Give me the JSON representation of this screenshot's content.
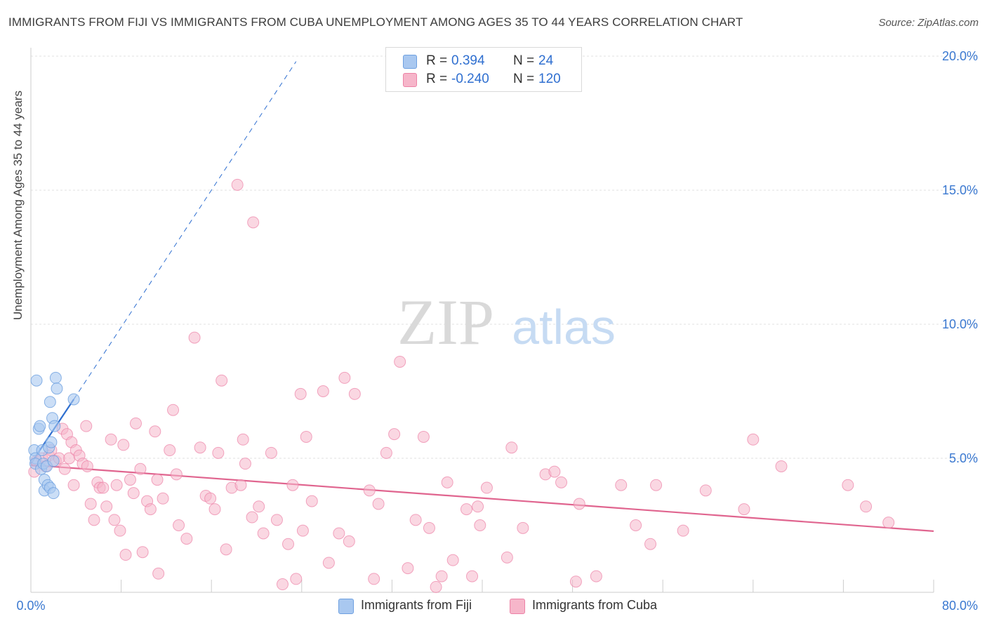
{
  "title": "IMMIGRANTS FROM FIJI VS IMMIGRANTS FROM CUBA UNEMPLOYMENT AMONG AGES 35 TO 44 YEARS CORRELATION CHART",
  "source": "Source: ZipAtlas.com",
  "watermark": {
    "zip": "ZIP",
    "atlas": "atlas"
  },
  "legend_top": [
    {
      "r_label": "R =",
      "r_value": "0.394",
      "n_label": "N =",
      "n_value": "24",
      "color": "#a9c8f0"
    },
    {
      "r_label": "R =",
      "r_value": "-0.240",
      "n_label": "N =",
      "n_value": "120",
      "color": "#f6b6ca"
    }
  ],
  "legend_bottom": [
    {
      "label": "Immigrants from Fiji",
      "color": "#a9c8f0"
    },
    {
      "label": "Immigrants from Cuba",
      "color": "#f6b6ca"
    }
  ],
  "chart_data": {
    "type": "scatter",
    "title": "IMMIGRANTS FROM FIJI VS IMMIGRANTS FROM CUBA UNEMPLOYMENT AMONG AGES 35 TO 44 YEARS CORRELATION CHART",
    "xlabel": "",
    "ylabel": "Unemployment Among Ages 35 to 44 years",
    "xlim": [
      0,
      80
    ],
    "ylim": [
      0,
      20
    ],
    "x_tick_labels": [
      "0.0%",
      "80.0%"
    ],
    "y_tick_labels": [
      "5.0%",
      "10.0%",
      "15.0%",
      "20.0%"
    ],
    "y_ticks": [
      5,
      10,
      15,
      20
    ],
    "grid": true,
    "legend_position": "top-center",
    "colors": {
      "fiji": "#6ea0e0",
      "fiji_fill": "#a9c8f0",
      "fiji_line": "#2f6fd0",
      "cuba": "#ec82a6",
      "cuba_fill": "#f6b6ca",
      "cuba_line": "#e0658f"
    },
    "series": [
      {
        "name": "Immigrants from Fiji",
        "points": [
          [
            0.3,
            5.3
          ],
          [
            0.4,
            5.0
          ],
          [
            0.4,
            4.8
          ],
          [
            0.5,
            7.9
          ],
          [
            0.7,
            6.1
          ],
          [
            0.8,
            6.2
          ],
          [
            0.9,
            4.6
          ],
          [
            1.0,
            5.3
          ],
          [
            1.1,
            4.8
          ],
          [
            1.2,
            3.8
          ],
          [
            1.2,
            4.2
          ],
          [
            1.4,
            4.7
          ],
          [
            1.5,
            4.0
          ],
          [
            1.6,
            5.4
          ],
          [
            1.7,
            3.9
          ],
          [
            1.7,
            7.1
          ],
          [
            1.8,
            5.6
          ],
          [
            1.9,
            6.5
          ],
          [
            2.0,
            3.7
          ],
          [
            2.0,
            4.9
          ],
          [
            2.1,
            6.2
          ],
          [
            2.2,
            8.0
          ],
          [
            2.3,
            7.6
          ],
          [
            3.8,
            7.2
          ]
        ],
        "trend": {
          "x": [
            0,
            3.8
          ],
          "y": [
            4.8,
            7.2
          ],
          "extended": {
            "x": [
              3.8,
              23.5
            ],
            "y": [
              7.2,
              19.8
            ]
          }
        }
      },
      {
        "name": "Immigrants from Cuba",
        "points": [
          [
            0.3,
            4.5
          ],
          [
            0.5,
            4.9
          ],
          [
            1.0,
            5.0
          ],
          [
            1.3,
            4.7
          ],
          [
            1.6,
            5.1
          ],
          [
            1.8,
            5.3
          ],
          [
            2.2,
            4.9
          ],
          [
            2.5,
            5.0
          ],
          [
            2.8,
            6.1
          ],
          [
            3.0,
            4.6
          ],
          [
            3.2,
            5.9
          ],
          [
            3.4,
            5.0
          ],
          [
            3.6,
            5.6
          ],
          [
            3.8,
            4.0
          ],
          [
            4.0,
            5.3
          ],
          [
            4.3,
            5.1
          ],
          [
            4.6,
            4.8
          ],
          [
            4.9,
            6.2
          ],
          [
            5.0,
            4.7
          ],
          [
            5.3,
            3.3
          ],
          [
            5.6,
            2.7
          ],
          [
            5.9,
            4.1
          ],
          [
            6.1,
            3.9
          ],
          [
            6.4,
            3.9
          ],
          [
            6.7,
            3.2
          ],
          [
            7.1,
            5.7
          ],
          [
            7.4,
            2.7
          ],
          [
            7.6,
            4.0
          ],
          [
            7.9,
            2.3
          ],
          [
            8.2,
            5.5
          ],
          [
            8.4,
            1.4
          ],
          [
            8.8,
            4.2
          ],
          [
            9.1,
            3.7
          ],
          [
            9.3,
            6.3
          ],
          [
            9.7,
            4.6
          ],
          [
            9.9,
            1.5
          ],
          [
            10.3,
            3.4
          ],
          [
            10.6,
            3.1
          ],
          [
            11.0,
            6.0
          ],
          [
            11.2,
            4.2
          ],
          [
            11.3,
            0.7
          ],
          [
            11.7,
            3.5
          ],
          [
            12.3,
            5.3
          ],
          [
            12.6,
            6.8
          ],
          [
            12.9,
            4.4
          ],
          [
            13.1,
            2.5
          ],
          [
            13.8,
            2.0
          ],
          [
            14.5,
            9.5
          ],
          [
            15.0,
            5.4
          ],
          [
            15.5,
            3.6
          ],
          [
            15.9,
            3.5
          ],
          [
            16.3,
            3.1
          ],
          [
            16.6,
            5.2
          ],
          [
            16.9,
            7.9
          ],
          [
            17.3,
            1.6
          ],
          [
            17.8,
            3.9
          ],
          [
            18.3,
            15.2
          ],
          [
            18.6,
            4.0
          ],
          [
            18.8,
            5.7
          ],
          [
            19.0,
            4.8
          ],
          [
            19.6,
            2.8
          ],
          [
            19.7,
            13.8
          ],
          [
            20.2,
            3.2
          ],
          [
            20.6,
            2.2
          ],
          [
            21.3,
            5.2
          ],
          [
            21.8,
            2.7
          ],
          [
            22.3,
            0.3
          ],
          [
            22.8,
            1.8
          ],
          [
            23.2,
            4.0
          ],
          [
            23.5,
            0.5
          ],
          [
            23.9,
            7.4
          ],
          [
            24.1,
            2.3
          ],
          [
            24.4,
            5.8
          ],
          [
            24.9,
            3.4
          ],
          [
            25.9,
            7.5
          ],
          [
            26.4,
            1.1
          ],
          [
            27.3,
            2.2
          ],
          [
            27.8,
            8.0
          ],
          [
            28.2,
            1.9
          ],
          [
            28.7,
            7.4
          ],
          [
            30.0,
            3.8
          ],
          [
            30.4,
            0.5
          ],
          [
            30.8,
            3.3
          ],
          [
            31.5,
            5.2
          ],
          [
            32.2,
            5.9
          ],
          [
            32.7,
            8.6
          ],
          [
            33.4,
            0.9
          ],
          [
            34.1,
            2.7
          ],
          [
            34.8,
            5.8
          ],
          [
            35.3,
            2.4
          ],
          [
            35.9,
            0.2
          ],
          [
            36.4,
            0.6
          ],
          [
            36.9,
            4.1
          ],
          [
            37.4,
            1.2
          ],
          [
            38.6,
            3.1
          ],
          [
            39.1,
            0.6
          ],
          [
            39.6,
            3.2
          ],
          [
            39.8,
            2.5
          ],
          [
            40.4,
            3.9
          ],
          [
            42.2,
            1.3
          ],
          [
            42.6,
            5.4
          ],
          [
            43.6,
            2.4
          ],
          [
            45.6,
            4.4
          ],
          [
            46.4,
            4.5
          ],
          [
            47.0,
            4.1
          ],
          [
            48.3,
            0.4
          ],
          [
            48.6,
            3.3
          ],
          [
            50.1,
            0.6
          ],
          [
            52.3,
            4.0
          ],
          [
            53.6,
            2.5
          ],
          [
            54.9,
            1.8
          ],
          [
            55.4,
            4.0
          ],
          [
            57.8,
            2.3
          ],
          [
            59.8,
            3.8
          ],
          [
            63.2,
            3.1
          ],
          [
            64.0,
            5.7
          ],
          [
            66.5,
            4.7
          ],
          [
            72.4,
            4.0
          ],
          [
            74.0,
            3.2
          ],
          [
            76.0,
            2.6
          ]
        ],
        "trend": {
          "x": [
            0,
            80
          ],
          "y": [
            4.75,
            2.28
          ]
        }
      }
    ]
  }
}
